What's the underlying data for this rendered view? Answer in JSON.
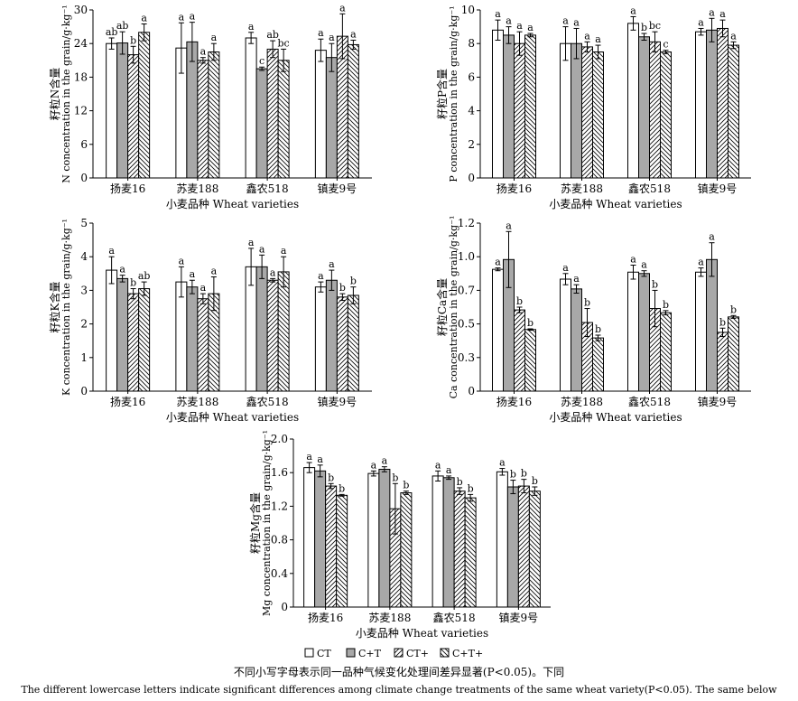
{
  "legend": {
    "entries": [
      {
        "label": "CT",
        "pattern": "white"
      },
      {
        "label": "C+T",
        "pattern": "gray"
      },
      {
        "label": "CT+",
        "pattern": "hatch-right"
      },
      {
        "label": "C+T+",
        "pattern": "hatch-left"
      }
    ]
  },
  "caption": {
    "zh": "不同小写字母表示同一品种气候变化处理间差异显著(P<0.05)。下同",
    "en": "The different lowercase letters indicate significant differences among climate change treatments of the same wheat variety(P<0.05). The same below"
  },
  "colors": {
    "gray": "#a8a8a8",
    "white": "#ffffff",
    "ink": "#000000"
  },
  "chart_data": [
    {
      "type": "bar",
      "ylabel_zh": "籽粒N含量",
      "ylabel_en": "N concentration in the grain/g·kg⁻¹",
      "xlabel": "小麦品种 Wheat varieties",
      "categories": [
        "扬麦16",
        "苏麦188",
        "鑫农518",
        "镇麦9号"
      ],
      "ylim": [
        0,
        30
      ],
      "yticks": [
        "0",
        "6",
        "12",
        "18",
        "24",
        "30"
      ],
      "yticks_values": [
        0,
        6,
        12,
        18,
        24,
        30
      ],
      "series": [
        {
          "name": "CT",
          "values": [
            24.0,
            23.2,
            25.0,
            22.8
          ],
          "errors": [
            1.0,
            4.5,
            1.0,
            2.0
          ],
          "letters": [
            "ab",
            "a",
            "a",
            "a"
          ]
        },
        {
          "name": "C+T",
          "values": [
            24.1,
            24.3,
            19.5,
            21.5
          ],
          "errors": [
            2.0,
            3.5,
            0.3,
            2.5
          ],
          "letters": [
            "ab",
            "a",
            "c",
            "a"
          ]
        },
        {
          "name": "CT+",
          "values": [
            22.0,
            21.0,
            23.0,
            25.3
          ],
          "errors": [
            1.5,
            0.5,
            1.5,
            4.0
          ],
          "letters": [
            "b",
            "a",
            "ab",
            "a"
          ]
        },
        {
          "name": "C+T+",
          "values": [
            26.0,
            22.5,
            21.0,
            23.8
          ],
          "errors": [
            1.5,
            1.5,
            2.0,
            0.8
          ],
          "letters": [
            "a",
            "a",
            "bc",
            "a"
          ]
        }
      ]
    },
    {
      "type": "bar",
      "ylabel_zh": "籽粒P含量",
      "ylabel_en": "P concentration in the grain/g·kg⁻¹",
      "xlabel": "小麦品种 Wheat varieties",
      "categories": [
        "扬麦16",
        "苏麦188",
        "鑫农518",
        "镇麦9号"
      ],
      "ylim": [
        0,
        10
      ],
      "yticks": [
        "0",
        "2",
        "4",
        "6",
        "8",
        "10"
      ],
      "yticks_values": [
        0,
        2,
        4,
        6,
        8,
        10
      ],
      "series": [
        {
          "name": "CT",
          "values": [
            8.8,
            8.0,
            9.2,
            8.7
          ],
          "errors": [
            0.6,
            1.0,
            0.4,
            0.2
          ],
          "letters": [
            "a",
            "a",
            "a",
            "a"
          ]
        },
        {
          "name": "C+T",
          "values": [
            8.5,
            8.0,
            8.4,
            8.8
          ],
          "errors": [
            0.5,
            0.9,
            0.2,
            0.7
          ],
          "letters": [
            "a",
            "a",
            "b",
            "a"
          ]
        },
        {
          "name": "CT+",
          "values": [
            8.0,
            7.8,
            8.1,
            8.9
          ],
          "errors": [
            0.7,
            0.3,
            0.6,
            0.5
          ],
          "letters": [
            "a",
            "a",
            "bc",
            "a"
          ]
        },
        {
          "name": "C+T+",
          "values": [
            8.5,
            7.5,
            7.5,
            7.9
          ],
          "errors": [
            0.1,
            0.4,
            0.1,
            0.2
          ],
          "letters": [
            "a",
            "a",
            "c",
            "a"
          ]
        }
      ]
    },
    {
      "type": "bar",
      "ylabel_zh": "籽粒K含量",
      "ylabel_en": "K concentration in the grain/g·kg⁻¹",
      "xlabel": "小麦品种 Wheat varieties",
      "categories": [
        "扬麦16",
        "苏麦188",
        "鑫农518",
        "镇麦9号"
      ],
      "ylim": [
        0,
        5
      ],
      "yticks": [
        "0",
        "1",
        "2",
        "3",
        "4",
        "5"
      ],
      "yticks_values": [
        0,
        1,
        2,
        3,
        4,
        5
      ],
      "series": [
        {
          "name": "CT",
          "values": [
            3.6,
            3.25,
            3.7,
            3.1
          ],
          "errors": [
            0.4,
            0.45,
            0.55,
            0.15
          ],
          "letters": [
            "a",
            "a",
            "a",
            "a"
          ]
        },
        {
          "name": "C+T",
          "values": [
            3.35,
            3.1,
            3.7,
            3.3
          ],
          "errors": [
            0.1,
            0.2,
            0.35,
            0.3
          ],
          "letters": [
            "a",
            "a",
            "a",
            "a"
          ]
        },
        {
          "name": "CT+",
          "values": [
            2.9,
            2.75,
            3.3,
            2.8
          ],
          "errors": [
            0.15,
            0.15,
            0.05,
            0.1
          ],
          "letters": [
            "b",
            "a",
            "a",
            "b"
          ]
        },
        {
          "name": "C+T+",
          "values": [
            3.05,
            2.9,
            3.55,
            2.85
          ],
          "errors": [
            0.2,
            0.5,
            0.45,
            0.25
          ],
          "letters": [
            "ab",
            "a",
            "a",
            "b"
          ]
        }
      ]
    },
    {
      "type": "bar",
      "ylabel_zh": "籽粒Ca含量",
      "ylabel_en": "Ca concentration in the grain/g·kg⁻¹",
      "xlabel": "小麦品种 Wheat varieties",
      "categories": [
        "扬麦16",
        "苏麦188",
        "鑫农518",
        "镇麦9号"
      ],
      "ylim": [
        0,
        1.2
      ],
      "yticks": [
        "0",
        "0.3",
        "0.5",
        "0.7",
        "1.0",
        "1.2"
      ],
      "yticks_values": [
        0,
        0.24,
        0.48,
        0.72,
        0.96,
        1.2
      ],
      "series": [
        {
          "name": "CT",
          "values": [
            0.87,
            0.8,
            0.85,
            0.85
          ],
          "errors": [
            0.01,
            0.04,
            0.05,
            0.03
          ],
          "letters": [
            "a",
            "a",
            "a",
            "a"
          ]
        },
        {
          "name": "C+T",
          "values": [
            0.94,
            0.73,
            0.84,
            0.94
          ],
          "errors": [
            0.2,
            0.03,
            0.02,
            0.12
          ],
          "letters": [
            "a",
            "a",
            "a",
            "a"
          ]
        },
        {
          "name": "CT+",
          "values": [
            0.58,
            0.49,
            0.59,
            0.42
          ],
          "errors": [
            0.02,
            0.1,
            0.13,
            0.03
          ],
          "letters": [
            "b",
            "b",
            "b",
            "b"
          ]
        },
        {
          "name": "C+T+",
          "values": [
            0.44,
            0.38,
            0.56,
            0.53
          ],
          "errors": [
            0.005,
            0.02,
            0.015,
            0.01
          ],
          "letters": [
            "b",
            "b",
            "b",
            "b"
          ]
        }
      ]
    },
    {
      "type": "bar",
      "ylabel_zh": "籽粒Mg含量",
      "ylabel_en": "Mg concentration in the grain/g·kg⁻¹",
      "xlabel": "小麦品种 Wheat varieties",
      "categories": [
        "扬麦16",
        "苏麦188",
        "鑫农518",
        "镇麦9号"
      ],
      "ylim": [
        0,
        2.0
      ],
      "yticks": [
        "0",
        "0.4",
        "0.8",
        "1.2",
        "1.6",
        "2.0"
      ],
      "yticks_values": [
        0,
        0.4,
        0.8,
        1.2,
        1.6,
        2.0
      ],
      "series": [
        {
          "name": "CT",
          "values": [
            1.66,
            1.59,
            1.56,
            1.61
          ],
          "errors": [
            0.06,
            0.03,
            0.06,
            0.04
          ],
          "letters": [
            "a",
            "a",
            "a",
            "a"
          ]
        },
        {
          "name": "C+T",
          "values": [
            1.62,
            1.64,
            1.54,
            1.43
          ],
          "errors": [
            0.07,
            0.03,
            0.02,
            0.08
          ],
          "letters": [
            "a",
            "a",
            "a",
            "b"
          ]
        },
        {
          "name": "CT+",
          "values": [
            1.44,
            1.17,
            1.38,
            1.44
          ],
          "errors": [
            0.03,
            0.3,
            0.04,
            0.08
          ],
          "letters": [
            "b",
            "b",
            "b",
            "b"
          ]
        },
        {
          "name": "C+T+",
          "values": [
            1.33,
            1.36,
            1.3,
            1.38
          ],
          "errors": [
            0.01,
            0.02,
            0.04,
            0.05
          ],
          "letters": [
            "b",
            "b",
            "b",
            "b"
          ]
        }
      ]
    }
  ]
}
